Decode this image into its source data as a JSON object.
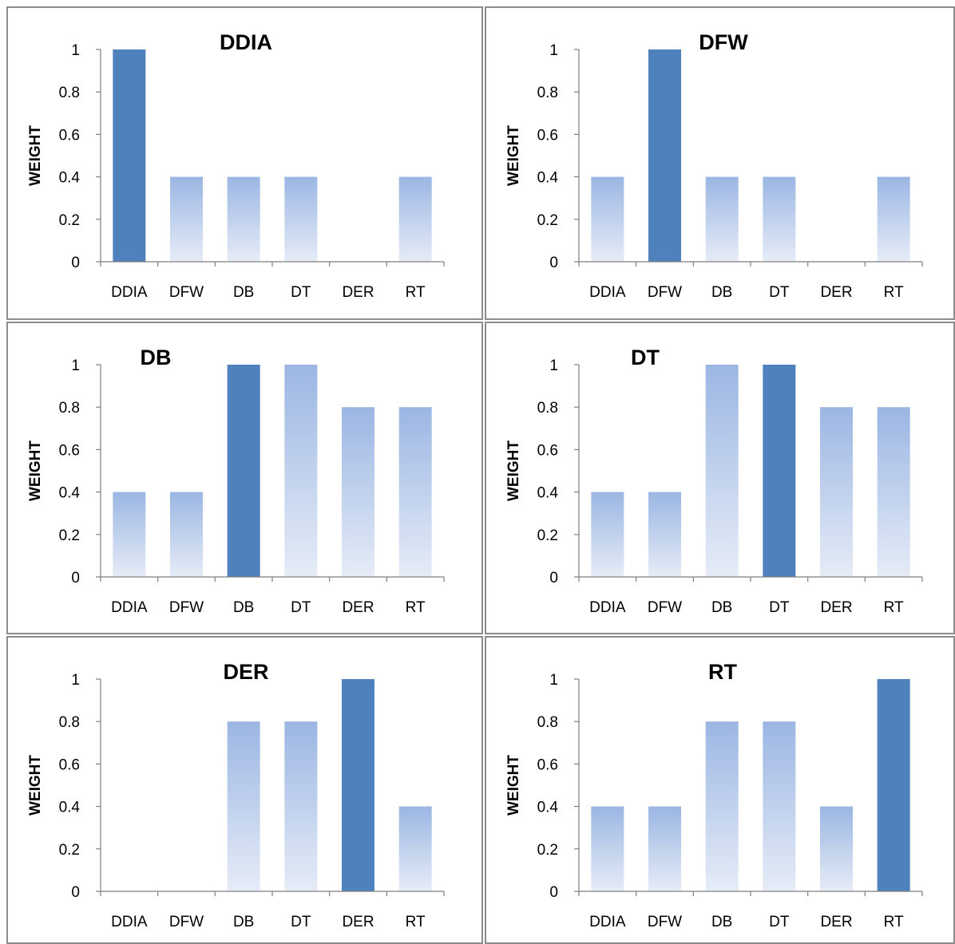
{
  "colors": {
    "highlight": "#4f81bd",
    "gradient_top": "#9bb6e3",
    "gradient_bottom": "#e6ecf7",
    "axis": "#7f7f7f",
    "border": "#8c8c8c"
  },
  "chart_data": [
    {
      "type": "bar",
      "title": "DDIA",
      "ylabel": "WEIGHT",
      "ylim": [
        0,
        1
      ],
      "yticks": [
        "0",
        "0.2",
        "0.4",
        "0.6",
        "0.8",
        "1"
      ],
      "categories": [
        "DDIA",
        "DFW",
        "DB",
        "DT",
        "DER",
        "RT"
      ],
      "values": [
        1,
        0.4,
        0.4,
        0.4,
        0,
        0.4
      ],
      "highlight": "DDIA"
    },
    {
      "type": "bar",
      "title": "DFW",
      "ylabel": "WEIGHT",
      "ylim": [
        0,
        1
      ],
      "yticks": [
        "0",
        "0.2",
        "0.4",
        "0.6",
        "0.8",
        "1"
      ],
      "categories": [
        "DDIA",
        "DFW",
        "DB",
        "DT",
        "DER",
        "RT"
      ],
      "values": [
        0.4,
        1,
        0.4,
        0.4,
        0,
        0.4
      ],
      "highlight": "DFW"
    },
    {
      "type": "bar",
      "title": "DB",
      "ylabel": "WEIGHT",
      "ylim": [
        0,
        1
      ],
      "yticks": [
        "0",
        "0.2",
        "0.4",
        "0.6",
        "0.8",
        "1"
      ],
      "categories": [
        "DDIA",
        "DFW",
        "DB",
        "DT",
        "DER",
        "RT"
      ],
      "values": [
        0.4,
        0.4,
        1,
        1,
        0.8,
        0.8
      ],
      "highlight": "DB"
    },
    {
      "type": "bar",
      "title": "DT",
      "ylabel": "WEIGHT",
      "ylim": [
        0,
        1
      ],
      "yticks": [
        "0",
        "0.2",
        "0.4",
        "0.6",
        "0.8",
        "1"
      ],
      "categories": [
        "DDIA",
        "DFW",
        "DB",
        "DT",
        "DER",
        "RT"
      ],
      "values": [
        0.4,
        0.4,
        1,
        1,
        0.8,
        0.8
      ],
      "highlight": "DT"
    },
    {
      "type": "bar",
      "title": "DER",
      "ylabel": "WEIGHT",
      "ylim": [
        0,
        1
      ],
      "yticks": [
        "0",
        "0.2",
        "0.4",
        "0.6",
        "0.8",
        "1"
      ],
      "categories": [
        "DDIA",
        "DFW",
        "DB",
        "DT",
        "DER",
        "RT"
      ],
      "values": [
        0,
        0,
        0.8,
        0.8,
        1,
        0.4
      ],
      "highlight": "DER"
    },
    {
      "type": "bar",
      "title": "RT",
      "ylabel": "WEIGHT",
      "ylim": [
        0,
        1
      ],
      "yticks": [
        "0",
        "0.2",
        "0.4",
        "0.6",
        "0.8",
        "1"
      ],
      "categories": [
        "DDIA",
        "DFW",
        "DB",
        "DT",
        "DER",
        "RT"
      ],
      "values": [
        0.4,
        0.4,
        0.8,
        0.8,
        0.4,
        1
      ],
      "highlight": "RT"
    }
  ]
}
